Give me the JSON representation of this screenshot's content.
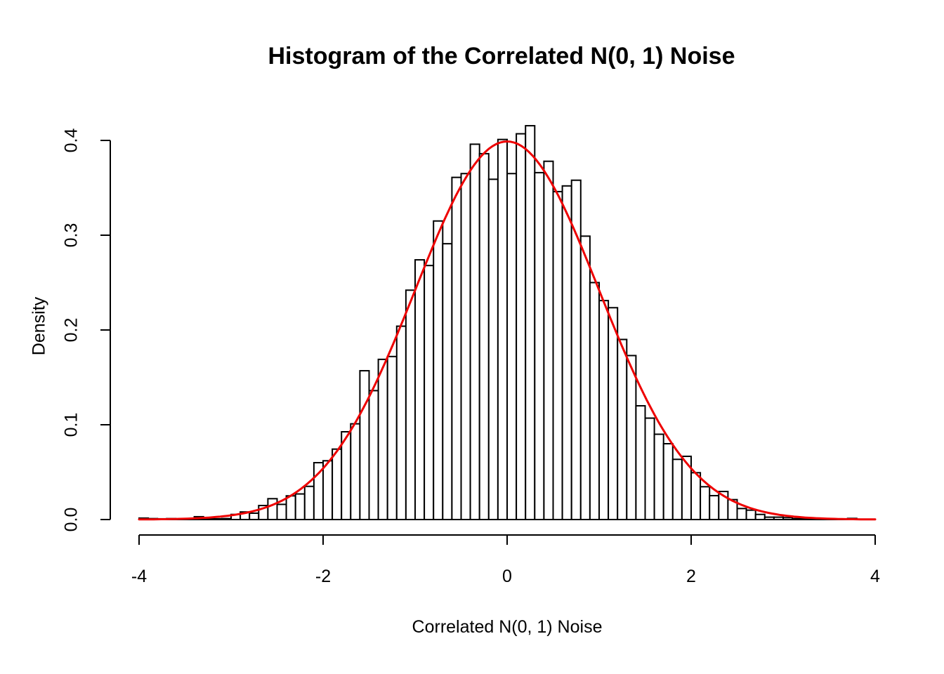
{
  "title": "Histogram of the Correlated N(0, 1) Noise",
  "x_axis": {
    "label": "Correlated N(0, 1) Noise",
    "tick_values": [
      -4,
      -2,
      0,
      2,
      4
    ],
    "tick_labels": [
      "-4",
      "-2",
      "0",
      "2",
      "4"
    ],
    "range": [
      -4,
      4
    ]
  },
  "y_axis": {
    "label": "Density",
    "tick_values": [
      0.0,
      0.1,
      0.2,
      0.3,
      0.4
    ],
    "tick_labels": [
      "0.0",
      "0.1",
      "0.2",
      "0.3",
      "0.4"
    ],
    "range": [
      0,
      0.4
    ]
  },
  "colors": {
    "background": "#ffffff",
    "bar_fill": "#ffffff",
    "bar_stroke": "#000000",
    "curve": "#ee0000",
    "axis": "#000000",
    "text": "#000000"
  },
  "chart_data": {
    "type": "bar",
    "subtype": "histogram",
    "title": "Histogram of the Correlated N(0, 1) Noise",
    "xlabel": "Correlated N(0, 1) Noise",
    "ylabel": "Density",
    "xlim": [
      -4,
      4
    ],
    "ylim": [
      0,
      0.4
    ],
    "grid": false,
    "bin_start": -4.0,
    "bin_width": 0.1,
    "bin_heights": [
      0.0015,
      0.001,
      0.0008,
      0.001,
      0.0008,
      0.001,
      0.003,
      0.001,
      0.0008,
      0.001,
      0.0054,
      0.008,
      0.0067,
      0.0148,
      0.022,
      0.016,
      0.025,
      0.027,
      0.035,
      0.06,
      0.062,
      0.0743,
      0.0926,
      0.101,
      0.157,
      0.136,
      0.169,
      0.172,
      0.204,
      0.242,
      0.274,
      0.268,
      0.315,
      0.291,
      0.361,
      0.365,
      0.396,
      0.386,
      0.359,
      0.401,
      0.365,
      0.407,
      0.4155,
      0.366,
      0.378,
      0.346,
      0.352,
      0.358,
      0.299,
      0.25,
      0.231,
      0.2235,
      0.19,
      0.173,
      0.12,
      0.107,
      0.09,
      0.08,
      0.0635,
      0.0667,
      0.0494,
      0.0346,
      0.0252,
      0.0296,
      0.021,
      0.0116,
      0.0099,
      0.0054,
      0.0025,
      0.0025,
      0.002,
      0.001,
      0.001,
      0,
      0,
      0,
      0,
      0.0012,
      0,
      0
    ],
    "overlay_curve": {
      "type": "normal-density",
      "mean": 0,
      "sd": 1,
      "peak_density": 0.3989,
      "x_range": [
        -4,
        4
      ],
      "color": "#ee0000"
    }
  }
}
